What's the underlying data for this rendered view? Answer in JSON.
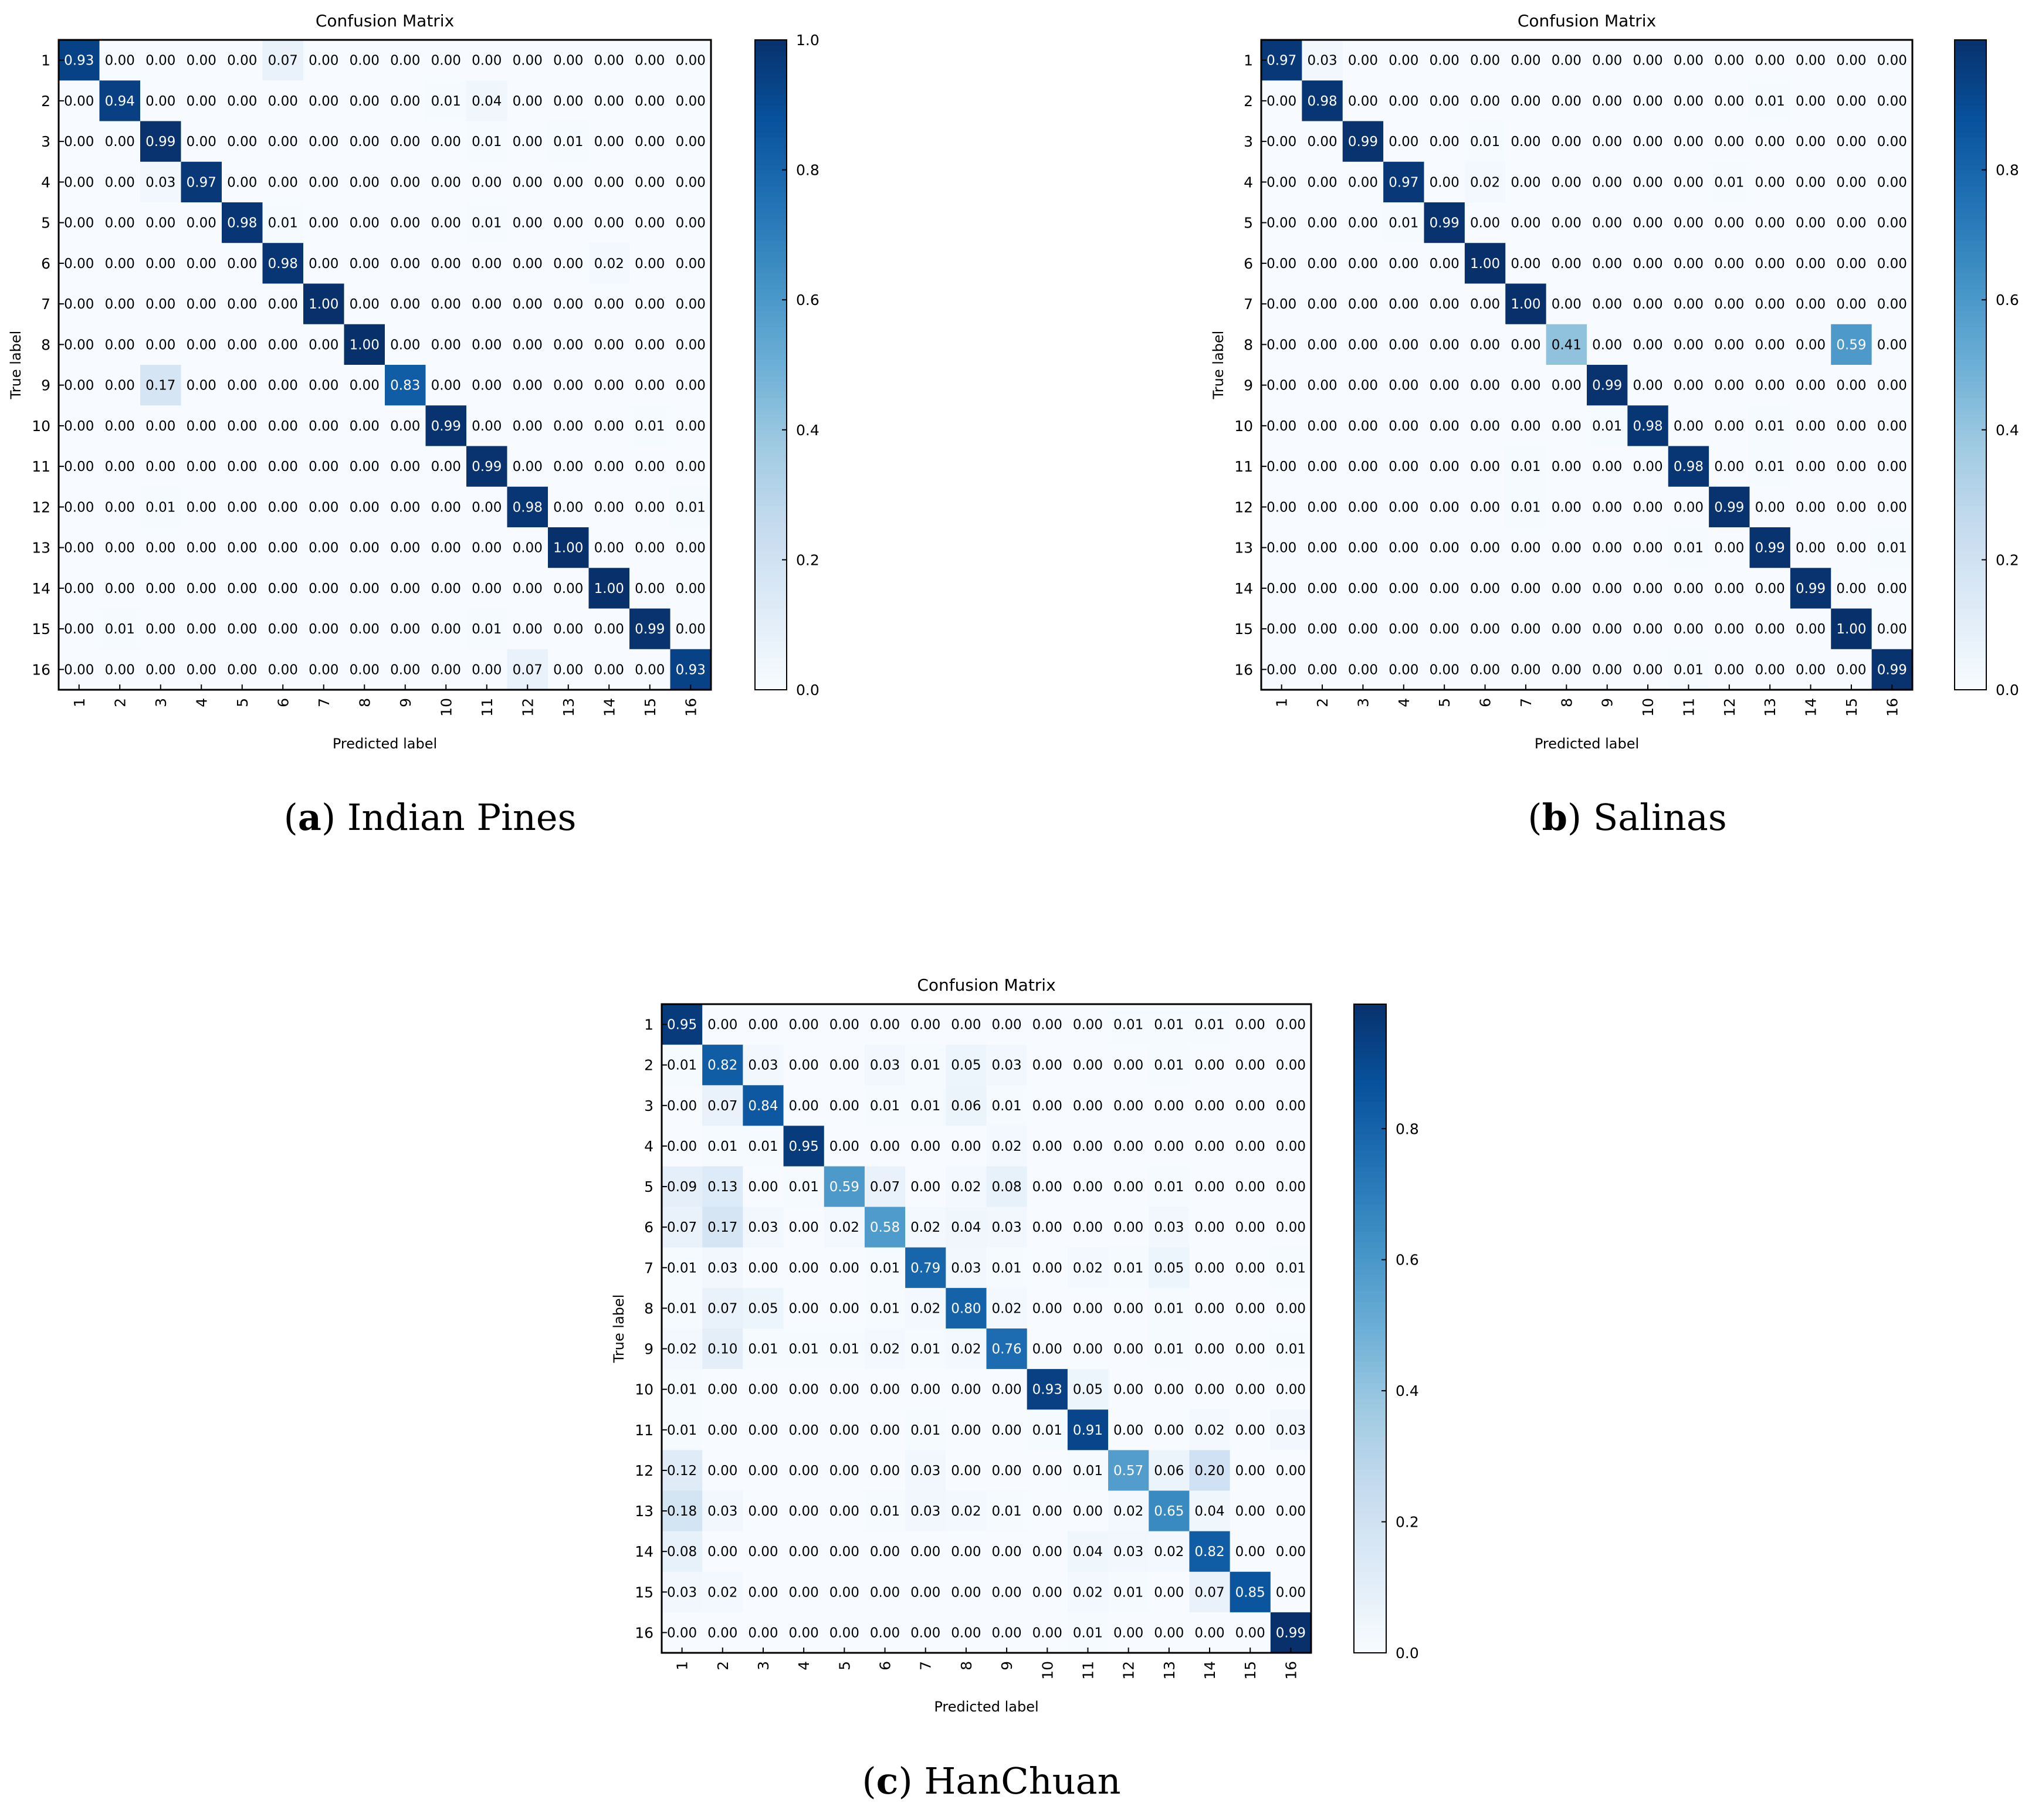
{
  "chart_data": [
    {
      "type": "heatmap",
      "title": "Confusion Matrix",
      "xlabel": "Predicted label",
      "ylabel": "True label",
      "caption_letter": "a",
      "caption_name": "Indian Pines",
      "categories": [
        "1",
        "2",
        "3",
        "4",
        "5",
        "6",
        "7",
        "8",
        "9",
        "10",
        "11",
        "12",
        "13",
        "14",
        "15",
        "16"
      ],
      "colorbar": {
        "range": [
          0.0,
          1.0
        ],
        "ticks": [
          "0.0",
          "0.2",
          "0.4",
          "0.6",
          "0.8",
          "1.0"
        ]
      },
      "cmap": "Blues",
      "matrix": [
        [
          "0.93",
          "0.00",
          "0.00",
          "0.00",
          "0.00",
          "0.07",
          "0.00",
          "0.00",
          "0.00",
          "0.00",
          "0.00",
          "0.00",
          "0.00",
          "0.00",
          "0.00",
          "0.00"
        ],
        [
          "0.00",
          "0.94",
          "0.00",
          "0.00",
          "0.00",
          "0.00",
          "0.00",
          "0.00",
          "0.00",
          "0.01",
          "0.04",
          "0.00",
          "0.00",
          "0.00",
          "0.00",
          "0.00"
        ],
        [
          "0.00",
          "0.00",
          "0.99",
          "0.00",
          "0.00",
          "0.00",
          "0.00",
          "0.00",
          "0.00",
          "0.00",
          "0.01",
          "0.00",
          "0.01",
          "0.00",
          "0.00",
          "0.00"
        ],
        [
          "0.00",
          "0.00",
          "0.03",
          "0.97",
          "0.00",
          "0.00",
          "0.00",
          "0.00",
          "0.00",
          "0.00",
          "0.00",
          "0.00",
          "0.00",
          "0.00",
          "0.00",
          "0.00"
        ],
        [
          "0.00",
          "0.00",
          "0.00",
          "0.00",
          "0.98",
          "0.01",
          "0.00",
          "0.00",
          "0.00",
          "0.00",
          "0.01",
          "0.00",
          "0.00",
          "0.00",
          "0.00",
          "0.00"
        ],
        [
          "0.00",
          "0.00",
          "0.00",
          "0.00",
          "0.00",
          "0.98",
          "0.00",
          "0.00",
          "0.00",
          "0.00",
          "0.00",
          "0.00",
          "0.00",
          "0.02",
          "0.00",
          "0.00"
        ],
        [
          "0.00",
          "0.00",
          "0.00",
          "0.00",
          "0.00",
          "0.00",
          "1.00",
          "0.00",
          "0.00",
          "0.00",
          "0.00",
          "0.00",
          "0.00",
          "0.00",
          "0.00",
          "0.00"
        ],
        [
          "0.00",
          "0.00",
          "0.00",
          "0.00",
          "0.00",
          "0.00",
          "0.00",
          "1.00",
          "0.00",
          "0.00",
          "0.00",
          "0.00",
          "0.00",
          "0.00",
          "0.00",
          "0.00"
        ],
        [
          "0.00",
          "0.00",
          "0.17",
          "0.00",
          "0.00",
          "0.00",
          "0.00",
          "0.00",
          "0.83",
          "0.00",
          "0.00",
          "0.00",
          "0.00",
          "0.00",
          "0.00",
          "0.00"
        ],
        [
          "0.00",
          "0.00",
          "0.00",
          "0.00",
          "0.00",
          "0.00",
          "0.00",
          "0.00",
          "0.00",
          "0.99",
          "0.00",
          "0.00",
          "0.00",
          "0.00",
          "0.01",
          "0.00"
        ],
        [
          "0.00",
          "0.00",
          "0.00",
          "0.00",
          "0.00",
          "0.00",
          "0.00",
          "0.00",
          "0.00",
          "0.00",
          "0.99",
          "0.00",
          "0.00",
          "0.00",
          "0.00",
          "0.00"
        ],
        [
          "0.00",
          "0.00",
          "0.01",
          "0.00",
          "0.00",
          "0.00",
          "0.00",
          "0.00",
          "0.00",
          "0.00",
          "0.00",
          "0.98",
          "0.00",
          "0.00",
          "0.00",
          "0.01"
        ],
        [
          "0.00",
          "0.00",
          "0.00",
          "0.00",
          "0.00",
          "0.00",
          "0.00",
          "0.00",
          "0.00",
          "0.00",
          "0.00",
          "0.00",
          "1.00",
          "0.00",
          "0.00",
          "0.00"
        ],
        [
          "0.00",
          "0.00",
          "0.00",
          "0.00",
          "0.00",
          "0.00",
          "0.00",
          "0.00",
          "0.00",
          "0.00",
          "0.00",
          "0.00",
          "0.00",
          "1.00",
          "0.00",
          "0.00"
        ],
        [
          "0.00",
          "0.01",
          "0.00",
          "0.00",
          "0.00",
          "0.00",
          "0.00",
          "0.00",
          "0.00",
          "0.00",
          "0.01",
          "0.00",
          "0.00",
          "0.00",
          "0.99",
          "0.00"
        ],
        [
          "0.00",
          "0.00",
          "0.00",
          "0.00",
          "0.00",
          "0.00",
          "0.00",
          "0.00",
          "0.00",
          "0.00",
          "0.00",
          "0.07",
          "0.00",
          "0.00",
          "0.00",
          "0.93"
        ]
      ]
    },
    {
      "type": "heatmap",
      "title": "Confusion Matrix",
      "xlabel": "Predicted label",
      "ylabel": "True label",
      "caption_letter": "b",
      "caption_name": "Salinas",
      "categories": [
        "1",
        "2",
        "3",
        "4",
        "5",
        "6",
        "7",
        "8",
        "9",
        "10",
        "11",
        "12",
        "13",
        "14",
        "15",
        "16"
      ],
      "colorbar": {
        "range": [
          0.0,
          1.0
        ],
        "ticks": [
          "0.0",
          "0.2",
          "0.4",
          "0.6",
          "0.8"
        ]
      },
      "cmap": "Blues",
      "matrix": [
        [
          "0.97",
          "0.03",
          "0.00",
          "0.00",
          "0.00",
          "0.00",
          "0.00",
          "0.00",
          "0.00",
          "0.00",
          "0.00",
          "0.00",
          "0.00",
          "0.00",
          "0.00",
          "0.00"
        ],
        [
          "0.00",
          "0.98",
          "0.00",
          "0.00",
          "0.00",
          "0.00",
          "0.00",
          "0.00",
          "0.00",
          "0.00",
          "0.00",
          "0.00",
          "0.01",
          "0.00",
          "0.00",
          "0.00"
        ],
        [
          "0.00",
          "0.00",
          "0.99",
          "0.00",
          "0.00",
          "0.01",
          "0.00",
          "0.00",
          "0.00",
          "0.00",
          "0.00",
          "0.00",
          "0.00",
          "0.00",
          "0.00",
          "0.00"
        ],
        [
          "0.00",
          "0.00",
          "0.00",
          "0.97",
          "0.00",
          "0.02",
          "0.00",
          "0.00",
          "0.00",
          "0.00",
          "0.00",
          "0.01",
          "0.00",
          "0.00",
          "0.00",
          "0.00"
        ],
        [
          "0.00",
          "0.00",
          "0.00",
          "0.01",
          "0.99",
          "0.00",
          "0.00",
          "0.00",
          "0.00",
          "0.00",
          "0.00",
          "0.00",
          "0.00",
          "0.00",
          "0.00",
          "0.00"
        ],
        [
          "0.00",
          "0.00",
          "0.00",
          "0.00",
          "0.00",
          "1.00",
          "0.00",
          "0.00",
          "0.00",
          "0.00",
          "0.00",
          "0.00",
          "0.00",
          "0.00",
          "0.00",
          "0.00"
        ],
        [
          "0.00",
          "0.00",
          "0.00",
          "0.00",
          "0.00",
          "0.00",
          "1.00",
          "0.00",
          "0.00",
          "0.00",
          "0.00",
          "0.00",
          "0.00",
          "0.00",
          "0.00",
          "0.00"
        ],
        [
          "0.00",
          "0.00",
          "0.00",
          "0.00",
          "0.00",
          "0.00",
          "0.00",
          "0.41",
          "0.00",
          "0.00",
          "0.00",
          "0.00",
          "0.00",
          "0.00",
          "0.59",
          "0.00"
        ],
        [
          "0.00",
          "0.00",
          "0.00",
          "0.00",
          "0.00",
          "0.00",
          "0.00",
          "0.00",
          "0.99",
          "0.00",
          "0.00",
          "0.00",
          "0.00",
          "0.00",
          "0.00",
          "0.00"
        ],
        [
          "0.00",
          "0.00",
          "0.00",
          "0.00",
          "0.00",
          "0.00",
          "0.00",
          "0.00",
          "0.01",
          "0.98",
          "0.00",
          "0.00",
          "0.01",
          "0.00",
          "0.00",
          "0.00"
        ],
        [
          "0.00",
          "0.00",
          "0.00",
          "0.00",
          "0.00",
          "0.00",
          "0.01",
          "0.00",
          "0.00",
          "0.00",
          "0.98",
          "0.00",
          "0.01",
          "0.00",
          "0.00",
          "0.00"
        ],
        [
          "0.00",
          "0.00",
          "0.00",
          "0.00",
          "0.00",
          "0.00",
          "0.01",
          "0.00",
          "0.00",
          "0.00",
          "0.00",
          "0.99",
          "0.00",
          "0.00",
          "0.00",
          "0.00"
        ],
        [
          "0.00",
          "0.00",
          "0.00",
          "0.00",
          "0.00",
          "0.00",
          "0.00",
          "0.00",
          "0.00",
          "0.00",
          "0.01",
          "0.00",
          "0.99",
          "0.00",
          "0.00",
          "0.01"
        ],
        [
          "0.00",
          "0.00",
          "0.00",
          "0.00",
          "0.00",
          "0.00",
          "0.00",
          "0.00",
          "0.00",
          "0.00",
          "0.00",
          "0.00",
          "0.00",
          "0.99",
          "0.00",
          "0.00"
        ],
        [
          "0.00",
          "0.00",
          "0.00",
          "0.00",
          "0.00",
          "0.00",
          "0.00",
          "0.00",
          "0.00",
          "0.00",
          "0.00",
          "0.00",
          "0.00",
          "0.00",
          "1.00",
          "0.00"
        ],
        [
          "0.00",
          "0.00",
          "0.00",
          "0.00",
          "0.00",
          "0.00",
          "0.00",
          "0.00",
          "0.00",
          "0.00",
          "0.01",
          "0.00",
          "0.00",
          "0.00",
          "0.00",
          "0.99"
        ]
      ]
    },
    {
      "type": "heatmap",
      "title": "Confusion Matrix",
      "xlabel": "Predicted label",
      "ylabel": "True label",
      "caption_letter": "c",
      "caption_name": "HanChuan",
      "categories": [
        "1",
        "2",
        "3",
        "4",
        "5",
        "6",
        "7",
        "8",
        "9",
        "10",
        "11",
        "12",
        "13",
        "14",
        "15",
        "16"
      ],
      "colorbar": {
        "range": [
          0.0,
          0.99
        ],
        "ticks": [
          "0.0",
          "0.2",
          "0.4",
          "0.6",
          "0.8"
        ]
      },
      "cmap": "Blues",
      "matrix": [
        [
          "0.95",
          "0.00",
          "0.00",
          "0.00",
          "0.00",
          "0.00",
          "0.00",
          "0.00",
          "0.00",
          "0.00",
          "0.00",
          "0.01",
          "0.01",
          "0.01",
          "0.00",
          "0.00"
        ],
        [
          "0.01",
          "0.82",
          "0.03",
          "0.00",
          "0.00",
          "0.03",
          "0.01",
          "0.05",
          "0.03",
          "0.00",
          "0.00",
          "0.00",
          "0.01",
          "0.00",
          "0.00",
          "0.00"
        ],
        [
          "0.00",
          "0.07",
          "0.84",
          "0.00",
          "0.00",
          "0.01",
          "0.01",
          "0.06",
          "0.01",
          "0.00",
          "0.00",
          "0.00",
          "0.00",
          "0.00",
          "0.00",
          "0.00"
        ],
        [
          "0.00",
          "0.01",
          "0.01",
          "0.95",
          "0.00",
          "0.00",
          "0.00",
          "0.00",
          "0.02",
          "0.00",
          "0.00",
          "0.00",
          "0.00",
          "0.00",
          "0.00",
          "0.00"
        ],
        [
          "0.09",
          "0.13",
          "0.00",
          "0.01",
          "0.59",
          "0.07",
          "0.00",
          "0.02",
          "0.08",
          "0.00",
          "0.00",
          "0.00",
          "0.01",
          "0.00",
          "0.00",
          "0.00"
        ],
        [
          "0.07",
          "0.17",
          "0.03",
          "0.00",
          "0.02",
          "0.58",
          "0.02",
          "0.04",
          "0.03",
          "0.00",
          "0.00",
          "0.00",
          "0.03",
          "0.00",
          "0.00",
          "0.00"
        ],
        [
          "0.01",
          "0.03",
          "0.00",
          "0.00",
          "0.00",
          "0.01",
          "0.79",
          "0.03",
          "0.01",
          "0.00",
          "0.02",
          "0.01",
          "0.05",
          "0.00",
          "0.00",
          "0.01"
        ],
        [
          "0.01",
          "0.07",
          "0.05",
          "0.00",
          "0.00",
          "0.01",
          "0.02",
          "0.80",
          "0.02",
          "0.00",
          "0.00",
          "0.00",
          "0.01",
          "0.00",
          "0.00",
          "0.00"
        ],
        [
          "0.02",
          "0.10",
          "0.01",
          "0.01",
          "0.01",
          "0.02",
          "0.01",
          "0.02",
          "0.76",
          "0.00",
          "0.00",
          "0.00",
          "0.01",
          "0.00",
          "0.00",
          "0.01"
        ],
        [
          "0.01",
          "0.00",
          "0.00",
          "0.00",
          "0.00",
          "0.00",
          "0.00",
          "0.00",
          "0.00",
          "0.93",
          "0.05",
          "0.00",
          "0.00",
          "0.00",
          "0.00",
          "0.00"
        ],
        [
          "0.01",
          "0.00",
          "0.00",
          "0.00",
          "0.00",
          "0.00",
          "0.01",
          "0.00",
          "0.00",
          "0.01",
          "0.91",
          "0.00",
          "0.00",
          "0.02",
          "0.00",
          "0.03"
        ],
        [
          "0.12",
          "0.00",
          "0.00",
          "0.00",
          "0.00",
          "0.00",
          "0.03",
          "0.00",
          "0.00",
          "0.00",
          "0.01",
          "0.57",
          "0.06",
          "0.20",
          "0.00",
          "0.00"
        ],
        [
          "0.18",
          "0.03",
          "0.00",
          "0.00",
          "0.00",
          "0.01",
          "0.03",
          "0.02",
          "0.01",
          "0.00",
          "0.00",
          "0.02",
          "0.65",
          "0.04",
          "0.00",
          "0.00"
        ],
        [
          "0.08",
          "0.00",
          "0.00",
          "0.00",
          "0.00",
          "0.00",
          "0.00",
          "0.00",
          "0.00",
          "0.00",
          "0.04",
          "0.03",
          "0.02",
          "0.82",
          "0.00",
          "0.00"
        ],
        [
          "0.03",
          "0.02",
          "0.00",
          "0.00",
          "0.00",
          "0.00",
          "0.00",
          "0.00",
          "0.00",
          "0.00",
          "0.02",
          "0.01",
          "0.00",
          "0.07",
          "0.85",
          "0.00"
        ],
        [
          "0.00",
          "0.00",
          "0.00",
          "0.00",
          "0.00",
          "0.00",
          "0.00",
          "0.00",
          "0.00",
          "0.00",
          "0.01",
          "0.00",
          "0.00",
          "0.00",
          "0.00",
          "0.99"
        ]
      ]
    }
  ]
}
